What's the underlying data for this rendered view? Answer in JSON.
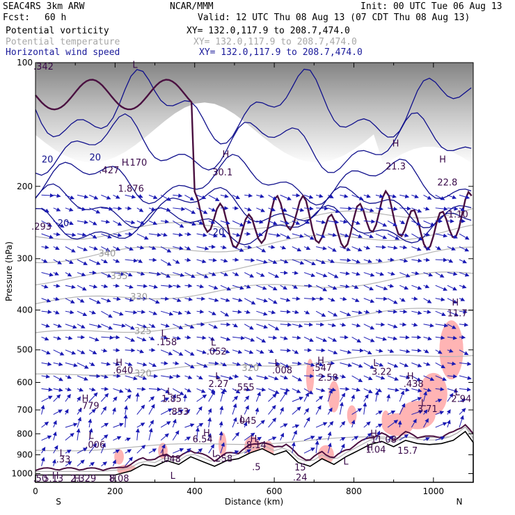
{
  "header": {
    "model": "SEAC4RS   3km ARW",
    "org": "NCAR/MMM",
    "init": "Init: 00 UTC Tue 06 Aug 13",
    "fcst_label": "Fcst:",
    "fcst_value": "60 h",
    "valid": "Valid: 12 UTC Thu 08 Aug 13 (07 CDT Thu 08 Aug 13)",
    "fields": [
      {
        "name": "Potential vorticity",
        "xy": "XY= 132.0,117.9 to 208.7,474.0"
      },
      {
        "name": "Potential temperature",
        "xy": "XY= 132.0,117.9 to 208.7,474.0"
      },
      {
        "name": "Horizontal wind speed",
        "xy": "XY= 132.0,117.9 to 208.7,474.0"
      }
    ]
  },
  "colors": {
    "pv_contour": "#4a1040",
    "theta_contour": "#b4b4b4",
    "wind_contour": "#10108c",
    "vector": "#1a1ab4",
    "shade_pink": "#ffb4b4",
    "ground_gray": "#8c8c8c"
  },
  "chart_data": {
    "type": "cross-section",
    "xlabel": "Distance (km)",
    "ylabel": "Pressure (hPa)",
    "xlim": [
      0,
      1100
    ],
    "ylim": [
      100,
      1050
    ],
    "y_scale": "log-pressure",
    "x_ticks": [
      0,
      200,
      400,
      600,
      800,
      1000
    ],
    "x_tick_labels": [
      "0",
      "200",
      "400",
      "600",
      "800",
      "1000"
    ],
    "y_ticks": [
      100,
      200,
      300,
      400,
      500,
      600,
      700,
      800,
      900,
      1000
    ],
    "y_tick_labels": [
      "100",
      "200",
      "300",
      "400",
      "500",
      "600",
      "700",
      "800",
      "900",
      "1000"
    ],
    "endpoint_left": "S",
    "endpoint_right": "N",
    "terrain_pressure": [
      [
        0,
        1008
      ],
      [
        100,
        1008
      ],
      [
        200,
        1008
      ],
      [
        240,
        985
      ],
      [
        270,
        950
      ],
      [
        300,
        960
      ],
      [
        330,
        930
      ],
      [
        360,
        950
      ],
      [
        390,
        910
      ],
      [
        420,
        935
      ],
      [
        450,
        960
      ],
      [
        480,
        930
      ],
      [
        510,
        920
      ],
      [
        540,
        890
      ],
      [
        570,
        870
      ],
      [
        600,
        900
      ],
      [
        630,
        880
      ],
      [
        660,
        940
      ],
      [
        690,
        960
      ],
      [
        720,
        920
      ],
      [
        750,
        950
      ],
      [
        780,
        910
      ],
      [
        810,
        880
      ],
      [
        840,
        850
      ],
      [
        870,
        835
      ],
      [
        900,
        860
      ],
      [
        930,
        830
      ],
      [
        960,
        845
      ],
      [
        990,
        850
      ],
      [
        1020,
        845
      ],
      [
        1050,
        830
      ],
      [
        1080,
        790
      ],
      [
        1100,
        840
      ]
    ],
    "theta_labels": [
      {
        "text": "340",
        "x": 180,
        "p": 296
      },
      {
        "text": "335",
        "x": 210,
        "p": 336
      },
      {
        "text": "330",
        "x": 260,
        "p": 378
      },
      {
        "text": "325",
        "x": 270,
        "p": 458
      },
      {
        "text": "320",
        "x": 270,
        "p": 581
      },
      {
        "text": "320",
        "x": 540,
        "p": 563
      }
    ],
    "wind_labels": [
      {
        "text": "20",
        "x": 30,
        "p": 175
      },
      {
        "text": "20",
        "x": 150,
        "p": 173
      },
      {
        "text": "20",
        "x": 70,
        "p": 250
      },
      {
        "text": "20",
        "x": 460,
        "p": 263
      }
    ],
    "value_labels": [
      {
        "text": ".342",
        "x": 20,
        "p": 104
      },
      {
        "text": "H",
        "x": 225,
        "p": 178
      },
      {
        "text": "1.876",
        "x": 240,
        "p": 206
      },
      {
        "text": "L",
        "x": 250,
        "p": 103
      },
      {
        "text": ".170",
        "x": 255,
        "p": 178
      },
      {
        "text": "H",
        "x": 478,
        "p": 170
      },
      {
        "text": "30.1",
        "x": 470,
        "p": 188
      },
      {
        "text": "H",
        "x": 905,
        "p": 160
      },
      {
        "text": "21.3",
        "x": 905,
        "p": 182
      },
      {
        "text": "H",
        "x": 1023,
        "p": 175
      },
      {
        "text": "22.8",
        "x": 1035,
        "p": 199
      },
      {
        "text": "1.10",
        "x": 1062,
        "p": 238
      },
      {
        "text": ".293",
        "x": 15,
        "p": 255
      },
      {
        "text": ".427",
        "x": 185,
        "p": 186
      },
      {
        "text": "H",
        "x": 1055,
        "p": 390
      },
      {
        "text": "11.7",
        "x": 1060,
        "p": 414
      },
      {
        "text": "L",
        "x": 322,
        "p": 464
      },
      {
        "text": ".158",
        "x": 330,
        "p": 487
      },
      {
        "text": "L",
        "x": 447,
        "p": 488
      },
      {
        "text": ".052",
        "x": 455,
        "p": 513
      },
      {
        "text": "H",
        "x": 210,
        "p": 546
      },
      {
        "text": ".640",
        "x": 220,
        "p": 570
      },
      {
        "text": "L",
        "x": 607,
        "p": 547
      },
      {
        "text": ".008",
        "x": 620,
        "p": 570
      },
      {
        "text": "H",
        "x": 717,
        "p": 540
      },
      {
        "text": ".547",
        "x": 720,
        "p": 563
      },
      {
        "text": "2.58",
        "x": 735,
        "p": 594
      },
      {
        "text": "L",
        "x": 855,
        "p": 548
      },
      {
        "text": "3.22",
        "x": 870,
        "p": 575
      },
      {
        "text": "L",
        "x": 458,
        "p": 590
      },
      {
        "text": "2.27",
        "x": 460,
        "p": 615
      },
      {
        "text": ".555",
        "x": 525,
        "p": 627
      },
      {
        "text": "H",
        "x": 942,
        "p": 590
      },
      {
        "text": ".438",
        "x": 950,
        "p": 615
      },
      {
        "text": "L",
        "x": 337,
        "p": 643
      },
      {
        "text": "1.85",
        "x": 342,
        "p": 669
      },
      {
        "text": ".853",
        "x": 360,
        "p": 719
      },
      {
        "text": "H",
        "x": 125,
        "p": 668
      },
      {
        "text": ".779",
        "x": 135,
        "p": 696
      },
      {
        "text": "L",
        "x": 1060,
        "p": 645
      },
      {
        "text": "2.94",
        "x": 1070,
        "p": 669
      },
      {
        "text": "L",
        "x": 975,
        "p": 685
      },
      {
        "text": "3.71",
        "x": 985,
        "p": 708
      },
      {
        "text": "L",
        "x": 520,
        "p": 750
      },
      {
        "text": ".045",
        "x": 530,
        "p": 757
      },
      {
        "text": "H",
        "x": 430,
        "p": 810
      },
      {
        "text": "6.54",
        "x": 420,
        "p": 839
      },
      {
        "text": "H",
        "x": 548,
        "p": 838
      },
      {
        "text": "8.14",
        "x": 555,
        "p": 868
      },
      {
        "text": "L",
        "x": 140,
        "p": 823
      },
      {
        "text": ".006",
        "x": 150,
        "p": 865
      },
      {
        "text": "H",
        "x": 850,
        "p": 813
      },
      {
        "text": "11.08",
        "x": 875,
        "p": 840
      },
      {
        "text": "H",
        "x": 840,
        "p": 880
      },
      {
        "text": "1.04",
        "x": 855,
        "p": 890
      },
      {
        "text": "15.7",
        "x": 935,
        "p": 895
      },
      {
        "text": "L",
        "x": 67,
        "p": 908
      },
      {
        "text": ".33",
        "x": 70,
        "p": 940
      },
      {
        "text": "L",
        "x": 323,
        "p": 908
      },
      {
        "text": ".048",
        "x": 340,
        "p": 938
      },
      {
        "text": "L",
        "x": 450,
        "p": 911
      },
      {
        "text": ".258",
        "x": 470,
        "p": 935
      },
      {
        "text": ".5",
        "x": 555,
        "p": 980
      },
      {
        "text": "15",
        "x": 665,
        "p": 982
      },
      {
        "text": ".24",
        "x": 665,
        "p": 1040
      },
      {
        "text": "L",
        "x": 780,
        "p": 950
      },
      {
        "text": "H",
        "x": 50,
        "p": 1030
      },
      {
        "text": "5.13",
        "x": 45,
        "p": 1055
      },
      {
        "text": "H",
        "x": 105,
        "p": 1055
      },
      {
        "text": "2.329",
        "x": 120,
        "p": 1085
      },
      {
        "text": "H",
        "x": 195,
        "p": 1055
      },
      {
        "text": "8.08",
        "x": 210,
        "p": 1085
      },
      {
        "text": ".50",
        "x": 12,
        "p": 1110
      },
      {
        "text": "L",
        "x": 345,
        "p": 1030
      }
    ]
  }
}
